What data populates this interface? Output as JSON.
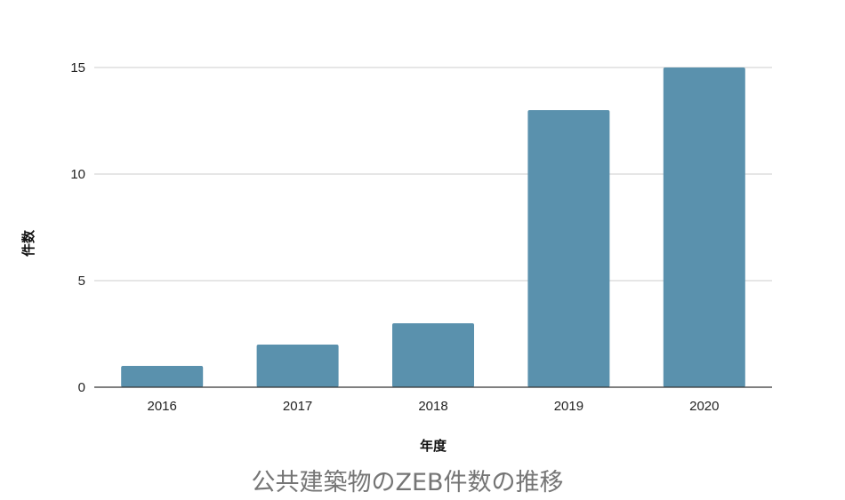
{
  "chart_data": {
    "type": "bar",
    "title": "公共建築物のZEB件数の推移",
    "xlabel": "年度",
    "ylabel": "件数",
    "categories": [
      "2016",
      "2017",
      "2018",
      "2019",
      "2020"
    ],
    "values": [
      1,
      2,
      3,
      13,
      15
    ],
    "ylim": [
      0,
      15
    ],
    "yticks": [
      0,
      5,
      10,
      15
    ],
    "grid": true,
    "legend": "none",
    "colors": {
      "bar": "#5a91ad",
      "grid": "#cccccc",
      "axis": "#333333"
    }
  }
}
